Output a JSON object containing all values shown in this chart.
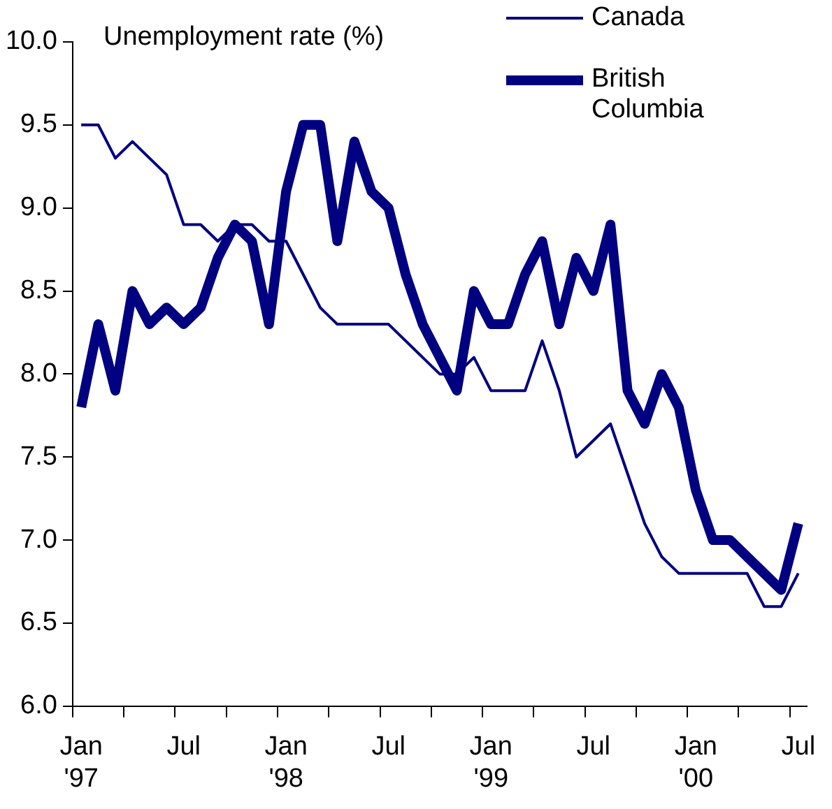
{
  "chart_data": {
    "type": "line",
    "ylabel": "Unemployment rate (%)",
    "categories": [
      "Jan\n'97",
      null,
      null,
      null,
      null,
      null,
      "Jul",
      null,
      null,
      null,
      null,
      null,
      "Jan\n'98",
      null,
      null,
      null,
      null,
      null,
      "Jul",
      null,
      null,
      null,
      null,
      null,
      "Jan\n'99",
      null,
      null,
      null,
      null,
      null,
      "Jul",
      null,
      null,
      null,
      null,
      null,
      "Jan\n'00",
      null,
      null,
      null,
      null,
      null,
      "Jul"
    ],
    "series": [
      {
        "name": "Canada",
        "color": "#000080",
        "values": [
          9.5,
          9.5,
          9.3,
          9.4,
          9.3,
          9.2,
          8.9,
          8.9,
          8.8,
          8.9,
          8.9,
          8.8,
          8.8,
          8.6,
          8.4,
          8.3,
          8.3,
          8.3,
          8.3,
          8.2,
          8.1,
          8.0,
          8.0,
          8.1,
          7.9,
          7.9,
          7.9,
          8.2,
          7.9,
          7.5,
          7.6,
          7.7,
          7.4,
          7.1,
          6.9,
          6.8,
          6.8,
          6.8,
          6.8,
          6.8,
          6.6,
          6.6,
          6.8
        ]
      },
      {
        "name": "British\nColumbia",
        "color": "#000080",
        "values": [
          7.8,
          8.3,
          7.9,
          8.5,
          8.3,
          8.4,
          8.3,
          8.4,
          8.7,
          8.9,
          8.8,
          8.3,
          9.1,
          9.5,
          9.5,
          8.8,
          9.4,
          9.1,
          9.0,
          8.6,
          8.3,
          8.1,
          7.9,
          8.5,
          8.3,
          8.3,
          8.6,
          8.8,
          8.3,
          8.7,
          8.5,
          8.9,
          7.9,
          7.7,
          8.0,
          7.8,
          7.3,
          7.0,
          7.0,
          6.9,
          6.8,
          6.7,
          7.1
        ]
      }
    ],
    "ylim": [
      6,
      10
    ],
    "yticks": [
      {
        "value": 6,
        "label": "6.0"
      },
      {
        "value": 6.5,
        "label": "6.5"
      },
      {
        "value": 7,
        "label": "7.0"
      },
      {
        "value": 7.5,
        "label": "7.5"
      },
      {
        "value": 8,
        "label": "8.0"
      },
      {
        "value": 8.5,
        "label": "8.5"
      },
      {
        "value": 9,
        "label": "9.0"
      },
      {
        "value": 9.5,
        "label": "9.5"
      },
      {
        "value": 10,
        "label": "10.0"
      }
    ],
    "grid": false,
    "legend": "top right",
    "marker": "none",
    "line_style": "solid"
  }
}
